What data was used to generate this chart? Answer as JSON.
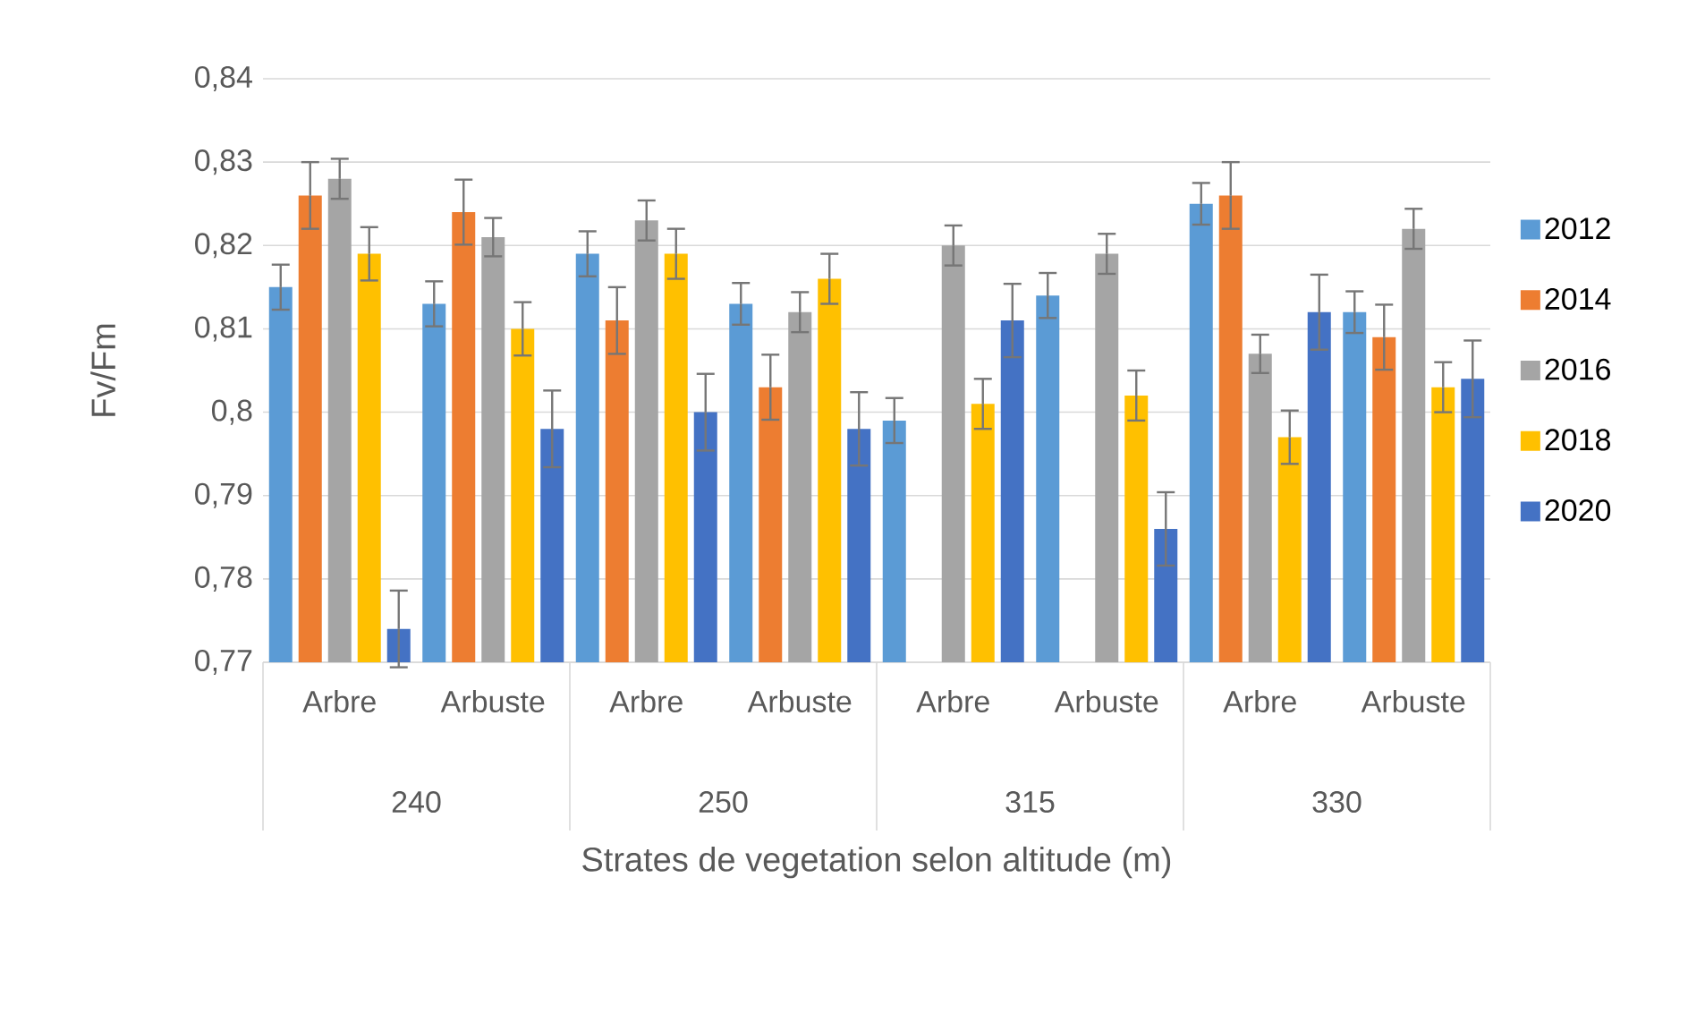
{
  "chart_data": {
    "type": "bar",
    "xlabel": "Strates de vegetation selon altitude (m)",
    "ylabel": "Fv/Fm",
    "categories": [
      "Arbre",
      "Arbuste",
      "Arbre",
      "Arbuste",
      "Arbre",
      "Arbuste",
      "Arbre",
      "Arbuste"
    ],
    "annotations": [
      "240",
      "250",
      "315",
      "330"
    ],
    "series": [
      {
        "name": "2012",
        "color": "#5b9bd5",
        "values": [
          0.815,
          0.813,
          0.819,
          0.813,
          0.799,
          0.814,
          0.825,
          0.812
        ],
        "errors": [
          0.0027,
          0.0027,
          0.0027,
          0.0025,
          0.0027,
          0.0027,
          0.0025,
          0.0025
        ]
      },
      {
        "name": "2014",
        "color": "#ed7d31",
        "values": [
          0.826,
          0.824,
          0.811,
          0.803,
          null,
          null,
          0.826,
          0.809
        ],
        "errors": [
          0.004,
          0.0039,
          0.004,
          0.0039,
          null,
          null,
          0.004,
          0.0039
        ]
      },
      {
        "name": "2016",
        "color": "#a5a5a5",
        "values": [
          0.828,
          0.821,
          0.823,
          0.812,
          0.82,
          0.819,
          0.807,
          0.822
        ],
        "errors": [
          0.0024,
          0.0023,
          0.0024,
          0.0024,
          0.0024,
          0.0024,
          0.0023,
          0.0024
        ]
      },
      {
        "name": "2018",
        "color": "#ffc000",
        "values": [
          0.819,
          0.81,
          0.819,
          0.816,
          0.801,
          0.802,
          0.797,
          0.803
        ],
        "errors": [
          0.0032,
          0.0032,
          0.003,
          0.003,
          0.003,
          0.003,
          0.0032,
          0.003
        ]
      },
      {
        "name": "2020",
        "color": "#4472c4",
        "values": [
          0.774,
          0.798,
          0.8,
          0.798,
          0.811,
          0.786,
          0.812,
          0.804
        ],
        "errors": [
          0.0046,
          0.0046,
          0.0046,
          0.0044,
          0.0044,
          0.0044,
          0.0045,
          0.0046
        ]
      }
    ],
    "ylim": [
      0.77,
      0.84
    ],
    "yticks": [
      {
        "value": 0.77,
        "label": "0,77"
      },
      {
        "value": 0.78,
        "label": "0,78"
      },
      {
        "value": 0.79,
        "label": "0,79"
      },
      {
        "value": 0.8,
        "label": "0,8"
      },
      {
        "value": 0.81,
        "label": "0,81"
      },
      {
        "value": 0.82,
        "label": "0,82"
      },
      {
        "value": 0.83,
        "label": "0,83"
      },
      {
        "value": 0.84,
        "label": "0,84"
      }
    ],
    "grid": "y",
    "legend": "right"
  }
}
